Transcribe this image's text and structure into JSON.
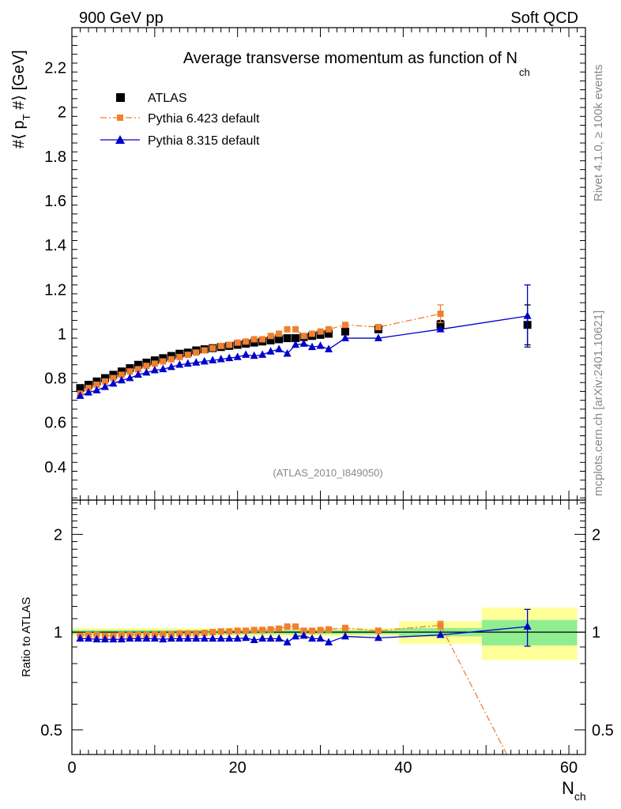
{
  "header": {
    "left": "900 GeV pp",
    "right": "Soft QCD"
  },
  "side_labels": {
    "rivet": "Rivet 4.1.0, ≥ 100k events",
    "mcplots": "mcplots.cern.ch [arXiv:2401.10621]"
  },
  "chart_data": [
    {
      "type": "scatter",
      "title": "Average transverse momentum as function of N",
      "title_sub": "ch",
      "ylabel": "#⟨ p",
      "ylabel_sub": "T",
      "ylabel_rest": " #⟩ [GeV]",
      "xlim": [
        0,
        62
      ],
      "ylim": [
        0.25,
        2.38
      ],
      "yticks": [
        0.4,
        0.6,
        0.8,
        1,
        1.2,
        1.4,
        1.6,
        1.8,
        2,
        2.2
      ],
      "ytick_labels": [
        "0.4",
        "0.6",
        "0.8",
        "1",
        "1.2",
        "1.4",
        "1.6",
        "1.8",
        "2",
        "2.2"
      ],
      "watermark": "(ATLAS_2010_I849050)",
      "legend_position": "top-left",
      "series": [
        {
          "name": "ATLAS",
          "color": "#000000",
          "marker": "square",
          "x": [
            1,
            2,
            3,
            4,
            5,
            6,
            7,
            8,
            9,
            10,
            11,
            12,
            13,
            14,
            15,
            16,
            17,
            18,
            19,
            20,
            21,
            22,
            23,
            24,
            25,
            26,
            27,
            28,
            29,
            30,
            31,
            33,
            37,
            44.5,
            55
          ],
          "y": [
            0.755,
            0.77,
            0.785,
            0.8,
            0.815,
            0.83,
            0.845,
            0.86,
            0.87,
            0.88,
            0.89,
            0.9,
            0.91,
            0.915,
            0.925,
            0.93,
            0.935,
            0.94,
            0.945,
            0.95,
            0.955,
            0.96,
            0.965,
            0.97,
            0.975,
            0.98,
            0.98,
            0.985,
            0.99,
            0.995,
            1.0,
            1.01,
            1.02,
            1.04,
            1.04
          ],
          "yerr": [
            0,
            0,
            0,
            0,
            0,
            0,
            0,
            0,
            0,
            0,
            0,
            0,
            0,
            0,
            0,
            0,
            0,
            0,
            0,
            0,
            0,
            0,
            0,
            0,
            0,
            0,
            0,
            0,
            0,
            0,
            0,
            0,
            0,
            0.02,
            0.09
          ]
        },
        {
          "name": "Pythia 6.423 default",
          "color": "#f08030",
          "marker": "square-small",
          "line": "dashdot",
          "x": [
            1,
            2,
            3,
            4,
            5,
            6,
            7,
            8,
            9,
            10,
            11,
            12,
            13,
            14,
            15,
            16,
            17,
            18,
            19,
            20,
            21,
            22,
            23,
            24,
            25,
            26,
            27,
            28,
            29,
            30,
            31,
            33,
            37,
            44.5
          ],
          "y": [
            0.73,
            0.755,
            0.77,
            0.785,
            0.8,
            0.815,
            0.83,
            0.84,
            0.855,
            0.865,
            0.875,
            0.885,
            0.895,
            0.905,
            0.915,
            0.925,
            0.935,
            0.945,
            0.95,
            0.96,
            0.965,
            0.975,
            0.975,
            0.99,
            1.0,
            1.02,
            1.02,
            0.99,
            1.0,
            1.01,
            1.02,
            1.04,
            1.03,
            1.09
          ],
          "yerr": [
            0,
            0,
            0,
            0,
            0,
            0,
            0,
            0,
            0,
            0,
            0,
            0,
            0,
            0,
            0,
            0,
            0,
            0,
            0,
            0,
            0,
            0,
            0,
            0,
            0,
            0,
            0,
            0,
            0,
            0,
            0,
            0,
            0,
            0.04
          ]
        },
        {
          "name": "Pythia 8.315 default",
          "color": "#0000cc",
          "marker": "triangle",
          "line": "solid",
          "x": [
            1,
            2,
            3,
            4,
            5,
            6,
            7,
            8,
            9,
            10,
            11,
            12,
            13,
            14,
            15,
            16,
            17,
            18,
            19,
            20,
            21,
            22,
            23,
            24,
            25,
            26,
            27,
            28,
            29,
            30,
            31,
            33,
            37,
            44.5,
            55
          ],
          "y": [
            0.72,
            0.735,
            0.745,
            0.76,
            0.775,
            0.79,
            0.8,
            0.815,
            0.825,
            0.835,
            0.84,
            0.85,
            0.86,
            0.865,
            0.87,
            0.875,
            0.88,
            0.885,
            0.89,
            0.895,
            0.905,
            0.9,
            0.905,
            0.92,
            0.93,
            0.91,
            0.95,
            0.955,
            0.94,
            0.945,
            0.93,
            0.98,
            0.98,
            1.02,
            1.08
          ],
          "yerr": [
            0,
            0,
            0,
            0,
            0,
            0,
            0,
            0,
            0,
            0,
            0,
            0,
            0,
            0,
            0,
            0,
            0,
            0,
            0,
            0,
            0,
            0,
            0,
            0,
            0,
            0,
            0,
            0,
            0,
            0,
            0,
            0,
            0,
            0,
            0.14
          ]
        }
      ]
    },
    {
      "type": "scatter",
      "ylabel": "Ratio to ATLAS",
      "xlabel": "N",
      "xlabel_sub": "ch",
      "xlim": [
        0,
        62
      ],
      "ylim": [
        0.42,
        2.55
      ],
      "yscale": "log",
      "yticks": [
        0.5,
        1,
        2
      ],
      "ytick_labels": [
        "0.5",
        "1",
        "2"
      ],
      "xticks": [
        0,
        20,
        40,
        60
      ],
      "xtick_labels": [
        "0",
        "20",
        "40",
        "60"
      ],
      "uncertainty_bands": [
        {
          "x0": 0,
          "x1": 39.5,
          "stat": [
            0.985,
            1.015
          ],
          "total": [
            0.97,
            1.03
          ]
        },
        {
          "x0": 39.5,
          "x1": 49.5,
          "stat": [
            0.97,
            1.03
          ],
          "total": [
            0.92,
            1.08
          ]
        },
        {
          "x0": 49.5,
          "x1": 61,
          "stat": [
            0.91,
            1.09
          ],
          "total": [
            0.82,
            1.19
          ]
        }
      ],
      "band_colors": {
        "stat": "#90ee90",
        "total": "#ffff99"
      },
      "series": [
        {
          "name": "Pythia 6.423 default",
          "color": "#f08030",
          "x": [
            1,
            2,
            3,
            4,
            5,
            6,
            7,
            8,
            9,
            10,
            11,
            12,
            13,
            14,
            15,
            16,
            17,
            18,
            19,
            20,
            21,
            22,
            23,
            24,
            25,
            26,
            27,
            28,
            29,
            30,
            31,
            33,
            37,
            44.5
          ],
          "y": [
            0.98,
            0.98,
            0.98,
            0.975,
            0.975,
            0.98,
            0.98,
            0.98,
            0.98,
            0.985,
            0.985,
            0.985,
            0.99,
            0.99,
            0.99,
            0.995,
            1.0,
            1.005,
            1.005,
            1.01,
            1.01,
            1.015,
            1.015,
            1.02,
            1.025,
            1.04,
            1.04,
            1.01,
            1.01,
            1.015,
            1.02,
            1.03,
            1.01,
            1.05
          ],
          "yerr": [
            0,
            0,
            0,
            0,
            0,
            0,
            0,
            0,
            0,
            0,
            0,
            0,
            0,
            0,
            0,
            0,
            0,
            0,
            0,
            0,
            0,
            0,
            0,
            0,
            0,
            0,
            0,
            0,
            0,
            0,
            0,
            0,
            0,
            0.03
          ],
          "tail_x": [
            44.5,
            52.5
          ],
          "tail_y": [
            1.05,
            0.42
          ]
        },
        {
          "name": "Pythia 8.315 default",
          "color": "#0000cc",
          "x": [
            1,
            2,
            3,
            4,
            5,
            6,
            7,
            8,
            9,
            10,
            11,
            12,
            13,
            14,
            15,
            16,
            17,
            18,
            19,
            20,
            21,
            22,
            23,
            24,
            25,
            26,
            27,
            28,
            29,
            30,
            31,
            33,
            37,
            44.5,
            55
          ],
          "y": [
            0.955,
            0.955,
            0.95,
            0.95,
            0.95,
            0.95,
            0.955,
            0.955,
            0.955,
            0.955,
            0.95,
            0.955,
            0.955,
            0.955,
            0.955,
            0.955,
            0.955,
            0.955,
            0.955,
            0.955,
            0.96,
            0.945,
            0.955,
            0.955,
            0.955,
            0.93,
            0.97,
            0.975,
            0.955,
            0.955,
            0.93,
            0.97,
            0.96,
            0.98,
            1.04
          ],
          "yerr": [
            0,
            0,
            0,
            0,
            0,
            0,
            0,
            0,
            0,
            0,
            0,
            0,
            0,
            0,
            0,
            0,
            0,
            0,
            0,
            0,
            0,
            0,
            0,
            0,
            0,
            0,
            0,
            0,
            0,
            0,
            0,
            0,
            0,
            0,
            0.135
          ]
        }
      ]
    }
  ]
}
